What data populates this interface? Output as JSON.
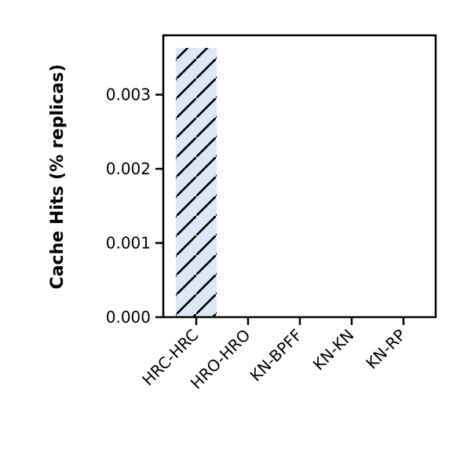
{
  "chart_data": {
    "type": "bar",
    "title": "",
    "xlabel": "",
    "ylabel": "Cache Hits (% replicas)",
    "categories": [
      "HRC-HRC",
      "HRO-HRO",
      "KN-BPFF",
      "KN-KN",
      "KN-RP"
    ],
    "values": [
      0.00363,
      0,
      0,
      0,
      0
    ],
    "ylim": [
      0,
      0.0038
    ],
    "yticks": [
      "0.000",
      "0.001",
      "0.002",
      "0.003"
    ],
    "ytick_values": [
      0,
      0.001,
      0.002,
      0.003
    ],
    "grid": false,
    "legend": "none",
    "bar_fill": "#dce8f8",
    "hatch": "diagonal",
    "hatch_color": "#000000",
    "bar_edge": "#000000"
  }
}
